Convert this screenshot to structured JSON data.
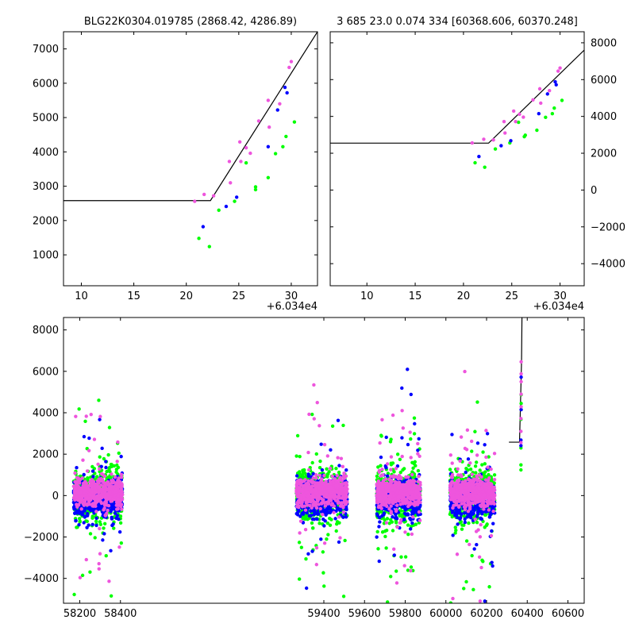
{
  "chart_data": [
    {
      "id": "top-left",
      "type": "scatter",
      "title": "BLG22K0304.019785 (2868.42, 4286.89)",
      "x_offset_label": "+6.034e4",
      "xlim": [
        8.3,
        32.5
      ],
      "ylim": [
        100,
        7500
      ],
      "xticks": [
        "10",
        "15",
        "20",
        "25",
        "30"
      ],
      "yticks": [
        "1000",
        "2000",
        "3000",
        "4000",
        "5000",
        "6000",
        "7000"
      ],
      "ytick_side": "left",
      "model_line": {
        "x": [
          8.3,
          22.3,
          32.5
        ],
        "y": [
          2580,
          2580,
          7500
        ]
      },
      "series": [
        {
          "color": "#00ff00",
          "points": [
            [
              21.2,
              1480
            ],
            [
              22.2,
              1240
            ],
            [
              23.1,
              2300
            ],
            [
              24.6,
              2560
            ],
            [
              25.7,
              3680
            ],
            [
              26.6,
              2900
            ],
            [
              26.6,
              2980
            ],
            [
              27.8,
              3250
            ],
            [
              28.5,
              3950
            ],
            [
              29.2,
              4150
            ],
            [
              29.5,
              4450
            ],
            [
              30.3,
              4870
            ]
          ]
        },
        {
          "color": "#0000ff",
          "points": [
            [
              21.6,
              1820
            ],
            [
              23.8,
              2410
            ],
            [
              24.8,
              2680
            ],
            [
              27.8,
              4150
            ],
            [
              28.7,
              5220
            ],
            [
              29.4,
              5880
            ],
            [
              29.6,
              5720
            ]
          ]
        },
        {
          "color": "#ee55dd",
          "points": [
            [
              20.8,
              2560
            ],
            [
              21.7,
              2760
            ],
            [
              22.6,
              2720
            ],
            [
              24.1,
              3720
            ],
            [
              24.2,
              3100
            ],
            [
              25.1,
              4290
            ],
            [
              25.2,
              3720
            ],
            [
              25.7,
              4120
            ],
            [
              26.1,
              3960
            ],
            [
              26.9,
              4900
            ],
            [
              27.8,
              5500
            ],
            [
              27.9,
              4720
            ],
            [
              28.9,
              5400
            ],
            [
              29.8,
              6460
            ],
            [
              30.0,
              6630
            ]
          ]
        }
      ]
    },
    {
      "id": "top-right",
      "type": "scatter",
      "title": "3 685 23.0 0.074 334 [60368.606, 60370.248]",
      "x_offset_label": "+6.034e4",
      "xlim": [
        6.2,
        32.5
      ],
      "ylim": [
        -5200,
        8600
      ],
      "xticks": [
        "10",
        "15",
        "20",
        "25",
        "30"
      ],
      "yticks": [
        "−4000",
        "−2000",
        "0",
        "2000",
        "4000",
        "6000",
        "8000"
      ],
      "ytick_side": "right",
      "model_line": {
        "x": [
          6.2,
          22.6,
          32.5
        ],
        "y": [
          2550,
          2550,
          7600
        ]
      },
      "series": [
        {
          "color": "#00ff00",
          "points": [
            [
              21.2,
              1480
            ],
            [
              22.2,
              1240
            ],
            [
              23.3,
              2230
            ],
            [
              24.8,
              2560
            ],
            [
              25.7,
              3680
            ],
            [
              26.3,
              2900
            ],
            [
              26.4,
              2980
            ],
            [
              27.6,
              3250
            ],
            [
              28.5,
              3950
            ],
            [
              29.2,
              4150
            ],
            [
              29.4,
              4450
            ],
            [
              30.2,
              4870
            ]
          ]
        },
        {
          "color": "#0000ff",
          "points": [
            [
              21.6,
              1820
            ],
            [
              23.9,
              2410
            ],
            [
              24.9,
              2680
            ],
            [
              27.8,
              4150
            ],
            [
              28.7,
              5220
            ],
            [
              29.5,
              5880
            ],
            [
              29.6,
              5720
            ]
          ]
        },
        {
          "color": "#ee55dd",
          "points": [
            [
              20.9,
              2560
            ],
            [
              22.1,
              2760
            ],
            [
              23.1,
              2720
            ],
            [
              24.2,
              3720
            ],
            [
              24.3,
              3100
            ],
            [
              25.2,
              4290
            ],
            [
              25.4,
              3720
            ],
            [
              25.8,
              4120
            ],
            [
              26.2,
              3960
            ],
            [
              27.2,
              4900
            ],
            [
              27.9,
              5500
            ],
            [
              28.0,
              4720
            ],
            [
              28.9,
              5400
            ],
            [
              29.8,
              6460
            ],
            [
              30.0,
              6630
            ]
          ]
        }
      ]
    },
    {
      "id": "bottom",
      "type": "scatter",
      "xlim": [
        58120,
        60680
      ],
      "ylim": [
        -5200,
        8600
      ],
      "xticks": [
        "58200",
        "58400",
        "59400",
        "59600",
        "59800",
        "60000",
        "60200",
        "60400",
        "60600"
      ],
      "yticks": [
        "−4000",
        "−2000",
        "0",
        "2000",
        "4000",
        "6000",
        "8000"
      ],
      "ytick_side": "left",
      "model_line": {
        "x": [
          60310,
          60362,
          60372,
          60374
        ],
        "y": [
          2580,
          2580,
          6500,
          8600
        ]
      },
      "seasons": [
        [
          58170,
          58410
        ],
        [
          59265,
          59515
        ],
        [
          59660,
          59875
        ],
        [
          60020,
          60240
        ]
      ],
      "series": [
        {
          "name": "green",
          "color": "#00ff00",
          "core_sigma": 600,
          "outlier_fraction": 0.085,
          "outlier_sigma": 2400
        },
        {
          "name": "blue",
          "color": "#0000ff",
          "core_sigma": 420,
          "core_mean": -150,
          "outlier_fraction": 0.05,
          "outlier_sigma": 2200
        },
        {
          "name": "magenta",
          "color": "#ee55dd",
          "core_sigma": 330,
          "core_mean": 150,
          "outlier_fraction": 0.07,
          "outlier_sigma": 2200
        }
      ],
      "event_points": [
        {
          "color": "#00ff00",
          "x": 60369,
          "y": 1480
        },
        {
          "color": "#00ff00",
          "x": 60369,
          "y": 1240
        },
        {
          "color": "#00ff00",
          "x": 60369,
          "y": 2300
        },
        {
          "color": "#00ff00",
          "x": 60369,
          "y": 3680
        },
        {
          "color": "#00ff00",
          "x": 60370,
          "y": 4450
        },
        {
          "color": "#00ff00",
          "x": 60370,
          "y": 4870
        },
        {
          "color": "#0000ff",
          "x": 60369,
          "y": 2410
        },
        {
          "color": "#0000ff",
          "x": 60369,
          "y": 2680
        },
        {
          "color": "#0000ff",
          "x": 60370,
          "y": 4150
        },
        {
          "color": "#0000ff",
          "x": 60370,
          "y": 5720
        },
        {
          "color": "#ee55dd",
          "x": 60369,
          "y": 2560
        },
        {
          "color": "#ee55dd",
          "x": 60369,
          "y": 3100
        },
        {
          "color": "#ee55dd",
          "x": 60369,
          "y": 3720
        },
        {
          "color": "#ee55dd",
          "x": 60370,
          "y": 4290
        },
        {
          "color": "#ee55dd",
          "x": 60370,
          "y": 4900
        },
        {
          "color": "#ee55dd",
          "x": 60370,
          "y": 5500
        },
        {
          "color": "#ee55dd",
          "x": 60370,
          "y": 6460
        },
        {
          "color": "#ee55dd",
          "x": 60370,
          "y": 5880
        }
      ]
    }
  ]
}
